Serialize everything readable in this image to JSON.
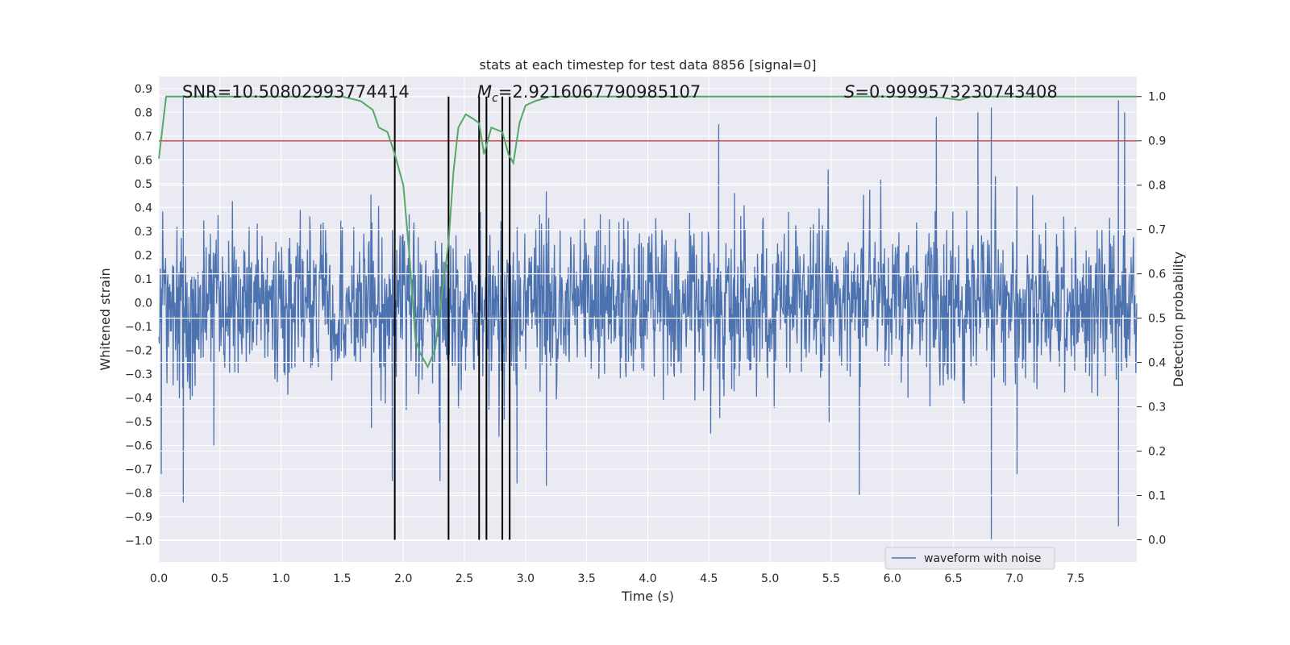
{
  "chart_data": {
    "type": "line",
    "title": "stats at each timestep for test data 8856 [signal=0]",
    "xlabel": "Time (s)",
    "ylabel": "Whitened strain",
    "y2label": "Detection probability",
    "xlim": [
      0.0,
      8.0
    ],
    "ylim": [
      -1.09,
      0.95
    ],
    "y2lim": [
      -0.05,
      1.045
    ],
    "x_ticks": [
      "0.0",
      "0.5",
      "1.0",
      "1.5",
      "2.0",
      "2.5",
      "3.0",
      "3.5",
      "4.0",
      "4.5",
      "5.0",
      "5.5",
      "6.0",
      "6.5",
      "7.0",
      "7.5"
    ],
    "y_ticks": [
      "0.9",
      "0.8",
      "0.7",
      "0.6",
      "0.5",
      "0.4",
      "0.3",
      "0.2",
      "0.1",
      "0.0",
      "−0.1",
      "−0.2",
      "−0.3",
      "−0.4",
      "−0.5",
      "−0.6",
      "−0.7",
      "−0.8",
      "−0.9",
      "−1.0"
    ],
    "y2_ticks": [
      "1.0",
      "0.9",
      "0.8",
      "0.7",
      "0.6",
      "0.5",
      "0.4",
      "0.3",
      "0.2",
      "0.1",
      "0.0"
    ],
    "grid": true,
    "legend": {
      "placement": "lower-right",
      "entries": [
        "waveform with noise"
      ]
    },
    "annotations": {
      "snr": "SNR=10.50802993774414",
      "mc_symbol": "M",
      "mc_sub": "c",
      "mc_value": "=2.9216067790985107",
      "s_symbol": "S",
      "s_value": "=0.9999573230743408"
    },
    "threshold": {
      "value": 0.9,
      "axis": "y2",
      "color": "#c44e52"
    },
    "vlines": [
      1.93,
      2.37,
      2.62,
      2.68,
      2.81,
      2.87
    ],
    "vline_range_y2": [
      0.0,
      1.0
    ],
    "series": [
      {
        "name": "waveform with noise",
        "kind": "noise",
        "color": "#4c72b0",
        "n_samples": 2048,
        "sigma": 0.17,
        "envelope_clip": [
          -1.0,
          0.87
        ],
        "spikes": [
          {
            "x": 0.2,
            "y": 0.87
          },
          {
            "x": 0.2,
            "y": -0.84
          },
          {
            "x": 0.02,
            "y": -0.72
          },
          {
            "x": 1.91,
            "y": -0.75
          },
          {
            "x": 2.93,
            "y": -0.76
          },
          {
            "x": 3.17,
            "y": -0.77
          },
          {
            "x": 4.58,
            "y": 0.75
          },
          {
            "x": 5.73,
            "y": -0.81
          },
          {
            "x": 6.7,
            "y": 0.8
          },
          {
            "x": 6.81,
            "y": 0.82
          },
          {
            "x": 6.81,
            "y": -1.0
          },
          {
            "x": 7.85,
            "y": 0.85
          },
          {
            "x": 7.85,
            "y": -0.94
          },
          {
            "x": 7.9,
            "y": 0.8
          },
          {
            "x": 6.36,
            "y": 0.78
          },
          {
            "x": 0.45,
            "y": -0.6
          },
          {
            "x": 2.3,
            "y": -0.75
          },
          {
            "x": 7.02,
            "y": -0.72
          }
        ]
      },
      {
        "name": "",
        "kind": "probability",
        "axis": "y2",
        "color": "#55a868",
        "x": [
          0.0,
          0.06,
          0.1,
          0.5,
          1.0,
          1.5,
          1.65,
          1.75,
          1.8,
          1.87,
          1.93,
          2.0,
          2.05,
          2.1,
          2.14,
          2.2,
          2.26,
          2.31,
          2.37,
          2.41,
          2.45,
          2.51,
          2.57,
          2.62,
          2.66,
          2.72,
          2.81,
          2.86,
          2.9,
          2.95,
          3.0,
          3.08,
          3.2,
          3.5,
          4.0,
          5.0,
          6.0,
          6.4,
          6.55,
          6.65,
          7.0,
          7.5,
          8.0
        ],
        "y": [
          0.86,
          1.0,
          1.0,
          1.0,
          1.0,
          1.0,
          0.99,
          0.97,
          0.93,
          0.92,
          0.87,
          0.8,
          0.64,
          0.45,
          0.42,
          0.39,
          0.43,
          0.54,
          0.67,
          0.83,
          0.93,
          0.96,
          0.95,
          0.94,
          0.87,
          0.93,
          0.92,
          0.87,
          0.85,
          0.94,
          0.98,
          0.99,
          1.0,
          1.0,
          1.0,
          1.0,
          1.0,
          0.998,
          0.992,
          1.0,
          1.0,
          1.0,
          1.0
        ]
      }
    ]
  }
}
